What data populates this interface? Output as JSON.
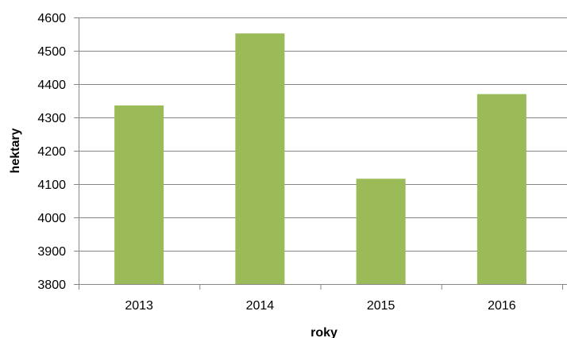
{
  "chart_data": {
    "type": "bar",
    "title": "",
    "xlabel": "roky",
    "ylabel": "hektary",
    "categories": [
      "2013",
      "2014",
      "2015",
      "2016"
    ],
    "series": [
      {
        "values": [
          4336,
          4552,
          4116,
          4370
        ],
        "color": "#9BBB59"
      }
    ],
    "ylim": [
      3800,
      4600
    ],
    "yticks": [
      3800,
      3900,
      4000,
      4100,
      4200,
      4300,
      4400,
      4500,
      4600
    ],
    "grid": true,
    "legend": "none",
    "gridline_color": "#868686"
  }
}
